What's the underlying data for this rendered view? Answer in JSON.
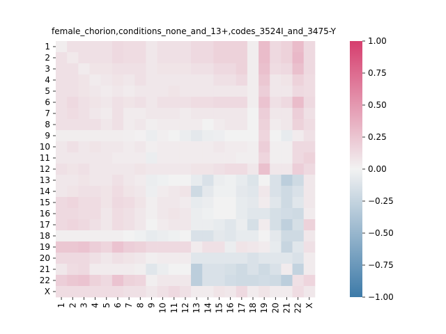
{
  "chart_data": {
    "type": "heatmap",
    "title": "female_chorion,conditions_none_and_13+,codes_3524I_and_3475-Y",
    "rows": [
      "1",
      "2",
      "3",
      "4",
      "5",
      "6",
      "7",
      "8",
      "9",
      "10",
      "11",
      "12",
      "13",
      "14",
      "15",
      "16",
      "17",
      "18",
      "19",
      "20",
      "21",
      "22",
      "X"
    ],
    "cols": [
      "1",
      "2",
      "3",
      "4",
      "5",
      "6",
      "7",
      "8",
      "9",
      "10",
      "11",
      "12",
      "13",
      "14",
      "15",
      "16",
      "17",
      "18",
      "19",
      "20",
      "21",
      "22",
      "X"
    ],
    "values": [
      [
        0.03,
        0.1,
        0.1,
        0.1,
        0.1,
        0.14,
        0.12,
        0.12,
        0.06,
        0.1,
        0.1,
        0.1,
        0.14,
        0.14,
        0.18,
        0.18,
        0.18,
        0.03,
        0.3,
        0.14,
        0.18,
        0.3,
        0.14
      ],
      [
        0.1,
        0.05,
        0.1,
        0.1,
        0.1,
        0.14,
        0.12,
        0.12,
        0.06,
        0.1,
        0.1,
        0.1,
        0.14,
        0.14,
        0.18,
        0.18,
        0.18,
        0.03,
        0.3,
        0.14,
        0.18,
        0.32,
        0.14
      ],
      [
        0.1,
        0.1,
        0.04,
        0.08,
        0.08,
        0.1,
        0.1,
        0.1,
        0.06,
        0.08,
        0.08,
        0.08,
        0.1,
        0.1,
        0.14,
        0.14,
        0.18,
        0.03,
        0.28,
        0.12,
        0.14,
        0.28,
        0.14
      ],
      [
        0.1,
        0.1,
        0.08,
        0.04,
        0.06,
        0.08,
        0.06,
        0.1,
        0.06,
        0.06,
        0.06,
        0.06,
        0.06,
        0.06,
        0.1,
        0.1,
        0.14,
        0.03,
        0.24,
        0.06,
        0.08,
        0.18,
        0.12
      ],
      [
        0.1,
        0.1,
        0.08,
        0.06,
        0.04,
        0.06,
        0.04,
        0.06,
        0.06,
        0.06,
        0.08,
        0.06,
        0.06,
        0.06,
        0.06,
        0.06,
        0.06,
        0.03,
        0.2,
        0.06,
        0.06,
        0.14,
        0.12
      ],
      [
        0.1,
        0.14,
        0.1,
        0.08,
        0.06,
        0.1,
        0.08,
        0.1,
        0.06,
        0.1,
        0.1,
        0.1,
        0.12,
        0.12,
        0.14,
        0.14,
        0.14,
        0.03,
        0.26,
        0.1,
        0.14,
        0.3,
        0.14
      ],
      [
        0.1,
        0.12,
        0.1,
        0.06,
        0.04,
        0.1,
        0.04,
        0.04,
        0.06,
        0.06,
        0.06,
        0.04,
        0.06,
        0.06,
        0.06,
        0.06,
        0.06,
        0.0,
        0.2,
        0.06,
        0.06,
        0.2,
        0.1
      ],
      [
        0.1,
        0.1,
        0.1,
        0.1,
        0.06,
        0.1,
        0.04,
        0.06,
        0.02,
        0.04,
        0.04,
        0.04,
        0.04,
        0.0,
        0.04,
        0.06,
        0.06,
        0.0,
        0.18,
        0.04,
        0.06,
        0.18,
        0.12
      ],
      [
        0.03,
        0.03,
        0.03,
        0.03,
        0.03,
        0.03,
        0.02,
        0.01,
        -0.04,
        0.02,
        0.0,
        -0.04,
        -0.08,
        -0.04,
        -0.03,
        0.0,
        0.0,
        0.0,
        0.16,
        0.0,
        -0.06,
        0.04,
        0.1
      ],
      [
        0.06,
        0.1,
        0.06,
        0.08,
        0.06,
        0.06,
        0.04,
        0.06,
        0.02,
        0.04,
        0.04,
        0.04,
        0.04,
        0.04,
        0.06,
        0.04,
        0.04,
        0.02,
        0.2,
        0.02,
        0.02,
        0.14,
        0.14
      ],
      [
        0.06,
        0.06,
        0.06,
        0.06,
        0.06,
        0.04,
        0.04,
        0.04,
        -0.04,
        0.04,
        0.04,
        0.04,
        0.04,
        0.04,
        0.04,
        0.04,
        0.02,
        0.02,
        0.16,
        0.02,
        0.02,
        0.14,
        0.18
      ],
      [
        0.1,
        0.08,
        0.1,
        0.06,
        0.06,
        0.06,
        0.06,
        0.08,
        0.06,
        0.06,
        0.06,
        0.06,
        0.08,
        0.08,
        0.1,
        0.12,
        0.12,
        0.06,
        0.28,
        0.06,
        0.06,
        0.2,
        0.14
      ],
      [
        0.06,
        0.06,
        0.08,
        0.06,
        0.06,
        0.1,
        0.06,
        0.04,
        -0.04,
        -0.02,
        0.0,
        0.0,
        -0.06,
        -0.14,
        -0.04,
        -0.02,
        -0.06,
        -0.12,
        0.0,
        -0.14,
        -0.3,
        -0.2,
        0.06
      ],
      [
        0.06,
        0.08,
        0.1,
        0.1,
        0.08,
        0.12,
        0.08,
        0.06,
        -0.03,
        0.04,
        0.06,
        0.08,
        -0.2,
        -0.08,
        -0.02,
        -0.02,
        -0.08,
        -0.1,
        0.06,
        -0.14,
        -0.2,
        -0.14,
        0.06
      ],
      [
        0.14,
        0.16,
        0.12,
        0.12,
        0.08,
        0.14,
        0.12,
        0.08,
        0.02,
        0.06,
        0.06,
        0.04,
        -0.06,
        -0.04,
        0.0,
        0.0,
        -0.06,
        -0.08,
        0.04,
        -0.1,
        -0.2,
        -0.1,
        0.06
      ],
      [
        0.14,
        0.14,
        0.12,
        0.12,
        0.06,
        0.12,
        0.1,
        0.06,
        0.02,
        0.06,
        0.08,
        0.06,
        -0.04,
        -0.02,
        0.0,
        0.0,
        -0.06,
        -0.1,
        -0.1,
        -0.16,
        -0.18,
        -0.2,
        0.04
      ],
      [
        0.14,
        0.16,
        0.14,
        0.1,
        0.06,
        0.12,
        0.1,
        0.06,
        0.0,
        0.04,
        0.06,
        0.06,
        -0.04,
        -0.04,
        -0.06,
        -0.1,
        -0.04,
        -0.16,
        0.04,
        -0.16,
        -0.28,
        -0.16,
        0.18
      ],
      [
        0.02,
        0.02,
        0.02,
        0.02,
        0.02,
        0.02,
        0.0,
        -0.02,
        -0.06,
        -0.04,
        -0.02,
        0.0,
        -0.14,
        -0.14,
        -0.08,
        -0.1,
        -0.06,
        -0.06,
        0.0,
        -0.08,
        -0.2,
        -0.2,
        0.06
      ],
      [
        0.24,
        0.24,
        0.26,
        0.2,
        0.16,
        0.26,
        0.2,
        0.18,
        0.14,
        0.14,
        0.14,
        0.14,
        0.04,
        0.1,
        0.1,
        -0.04,
        0.08,
        0.06,
        0.04,
        -0.06,
        -0.24,
        -0.1,
        0.1
      ],
      [
        0.14,
        0.14,
        0.14,
        0.1,
        0.06,
        0.1,
        0.08,
        0.06,
        0.02,
        0.04,
        0.04,
        0.04,
        -0.1,
        -0.1,
        -0.1,
        -0.1,
        -0.1,
        -0.14,
        -0.1,
        -0.1,
        -0.1,
        -0.14,
        0.04
      ],
      [
        0.06,
        0.12,
        0.14,
        0.04,
        0.04,
        0.04,
        0.04,
        0.02,
        -0.1,
        -0.04,
        0.0,
        0.0,
        -0.3,
        -0.14,
        -0.14,
        -0.16,
        -0.2,
        -0.14,
        -0.2,
        -0.14,
        0.04,
        -0.26,
        0.04
      ],
      [
        0.2,
        0.24,
        0.26,
        0.18,
        0.14,
        0.26,
        0.18,
        0.16,
        0.02,
        0.06,
        0.06,
        0.06,
        -0.3,
        -0.14,
        -0.14,
        -0.18,
        -0.2,
        -0.2,
        -0.18,
        -0.2,
        -0.3,
        0.1,
        0.16
      ],
      [
        0.12,
        0.12,
        0.12,
        0.12,
        0.12,
        0.12,
        0.1,
        0.1,
        0.06,
        0.1,
        0.14,
        0.1,
        0.04,
        0.04,
        0.08,
        0.06,
        0.14,
        0.04,
        0.08,
        0.04,
        0.04,
        0.12,
        0.06
      ]
    ],
    "colorbar": {
      "min": -1.0,
      "max": 1.0,
      "ticks": [
        "1.00",
        "0.75",
        "0.50",
        "0.25",
        "0.00",
        "−0.25",
        "−0.50",
        "−0.75",
        "−1.00"
      ]
    },
    "colors": {
      "negative": "#3d7aa8",
      "center": "#f2f2f2",
      "positive": "#d63e6e"
    }
  }
}
